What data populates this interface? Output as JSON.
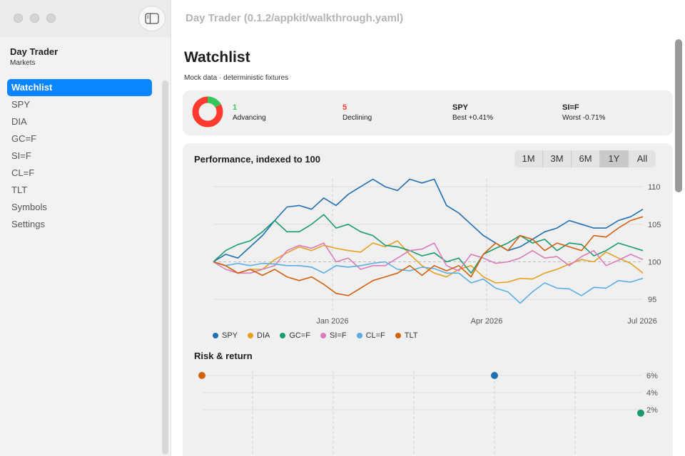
{
  "window": {
    "title": "Day Trader (0.1.2/appkit/walkthrough.yaml)"
  },
  "sidebar": {
    "app_name": "Day Trader",
    "subtitle": "Markets",
    "toggle_icon": "sidebar-icon",
    "items": [
      {
        "label": "Watchlist",
        "active": true
      },
      {
        "label": "SPY"
      },
      {
        "label": "DIA"
      },
      {
        "label": "GC=F"
      },
      {
        "label": "SI=F"
      },
      {
        "label": "CL=F"
      },
      {
        "label": "TLT"
      },
      {
        "label": "Symbols"
      },
      {
        "label": "Settings"
      }
    ]
  },
  "main": {
    "title": "Watchlist",
    "subtitle": "Mock data · deterministic fixtures",
    "summary": {
      "advancing": {
        "value": "1",
        "label": "Advancing",
        "color": "#34c759"
      },
      "declining": {
        "value": "5",
        "label": "Declining",
        "color": "#ff3b30"
      },
      "best": {
        "symbol": "SPY",
        "label": "Best +0.41%"
      },
      "worst": {
        "symbol": "SI=F",
        "label": "Worst -0.71%"
      }
    },
    "performance": {
      "title": "Performance, indexed to 100",
      "ranges": [
        "1M",
        "3M",
        "6M",
        "1Y",
        "All"
      ],
      "selected_range": "1Y"
    },
    "risk": {
      "title": "Risk & return"
    }
  },
  "chart_data": [
    {
      "type": "line",
      "title": "Performance, indexed to 100",
      "x_tick_labels": [
        "Jan 2026",
        "Apr 2026",
        "Jul 2026"
      ],
      "y_ticks": [
        95,
        100,
        105,
        110
      ],
      "ylim": [
        93.5,
        112
      ],
      "baseline": 100,
      "grid": true,
      "legend": "bottom-left",
      "series": [
        {
          "name": "SPY",
          "color": "#1f6fb2",
          "values": [
            100,
            101,
            100.5,
            102,
            103.5,
            105.5,
            107.3,
            107.5,
            107,
            108.5,
            107.5,
            109,
            110,
            111,
            110,
            109.5,
            111,
            110.5,
            111,
            107.5,
            106.5,
            105,
            103.5,
            102.5,
            101.5,
            102,
            103,
            104,
            104.5,
            105.5,
            105,
            104.5,
            104.5,
            105.5,
            106,
            107
          ]
        },
        {
          "name": "DIA",
          "color": "#e6a020",
          "values": [
            100,
            99.5,
            98.5,
            99,
            99,
            100.3,
            101.2,
            102,
            101.5,
            102.2,
            101.8,
            101.5,
            101.3,
            102.5,
            102,
            102.8,
            101,
            99.5,
            98.5,
            98,
            99,
            99.5,
            98,
            97.2,
            97.3,
            97.8,
            97.7,
            98.5,
            99,
            99.7,
            100.3,
            100,
            101.3,
            100.5,
            99.8,
            98.5
          ]
        },
        {
          "name": "GC=F",
          "color": "#1a9b6c",
          "values": [
            100,
            101.5,
            102.3,
            102.8,
            104,
            105.5,
            104,
            104,
            105,
            106.3,
            104.5,
            105,
            104,
            103.5,
            102.2,
            102,
            101.5,
            100.8,
            101.2,
            100,
            100.5,
            98.5,
            101,
            101.8,
            102.5,
            103.5,
            102.5,
            103,
            101.5,
            102.5,
            102.3,
            100.8,
            101.5,
            102.5,
            102,
            101.5
          ]
        },
        {
          "name": "SI=F",
          "color": "#d97cba",
          "values": [
            100,
            99,
            98.5,
            98.5,
            99,
            99.5,
            101.5,
            102.2,
            101.8,
            102.5,
            100,
            100.5,
            99,
            99.5,
            99.5,
            100.5,
            101.5,
            101.7,
            102.5,
            99.5,
            98.8,
            101,
            100.5,
            99.8,
            100,
            100.5,
            101.5,
            100.5,
            100.7,
            99.5,
            100.7,
            101.5,
            99.5,
            100.2,
            101,
            100.3
          ]
        },
        {
          "name": "CL=F",
          "color": "#5aaee4",
          "values": [
            100,
            99.5,
            99.8,
            99.5,
            99.8,
            99.7,
            99.5,
            99.5,
            99.3,
            98.5,
            99.5,
            99.3,
            99.5,
            99.8,
            100,
            99,
            98.8,
            99.3,
            99.1,
            98.5,
            98.5,
            97.2,
            97.7,
            96.5,
            96,
            94.5,
            96,
            97.2,
            96.5,
            96.4,
            95.5,
            96.6,
            96.5,
            97.5,
            97.3,
            97.8
          ]
        },
        {
          "name": "TLT",
          "color": "#d2610f",
          "values": [
            100,
            99.5,
            98.5,
            99,
            98.2,
            99,
            98,
            97.5,
            98,
            97,
            95.8,
            95.5,
            96.5,
            97.5,
            98,
            98.5,
            99.5,
            98.2,
            99.5,
            98.8,
            99.5,
            98,
            101,
            102.5,
            101.5,
            103.5,
            103,
            101.5,
            102.5,
            102,
            101.5,
            103.5,
            103.3,
            104.5,
            105.5,
            106
          ]
        }
      ]
    },
    {
      "type": "scatter",
      "title": "Risk & return",
      "y_ticks": [
        "6%",
        "4%",
        "2%"
      ],
      "points": [
        {
          "name": "TLT",
          "color": "#d2610f",
          "y": 6.0
        },
        {
          "name": "SPY",
          "color": "#1f6fb2",
          "y": 6.0
        },
        {
          "name": "GC=F",
          "color": "#1a9b6c",
          "y": 1.6
        }
      ]
    }
  ]
}
